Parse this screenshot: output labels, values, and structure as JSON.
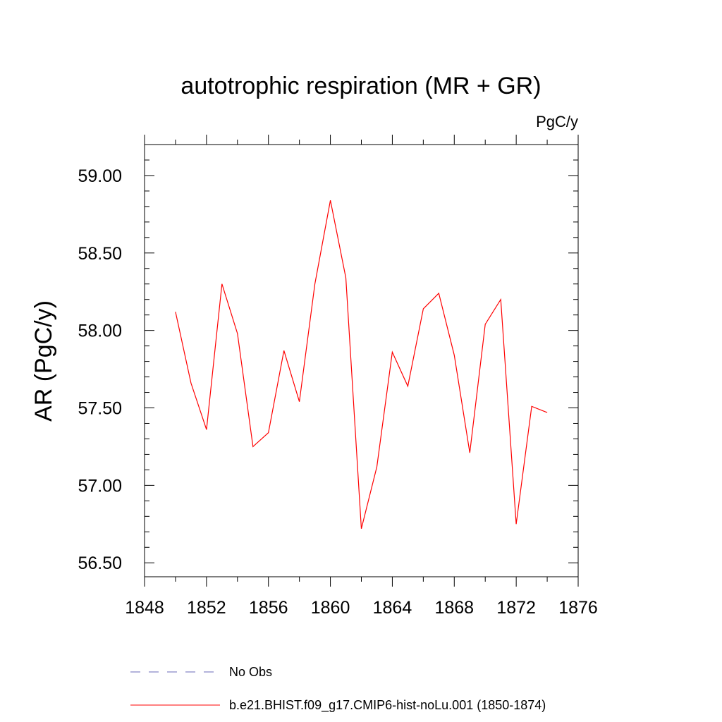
{
  "chart_data": {
    "type": "line",
    "title": "autotrophic respiration (MR + GR)",
    "units": "PgC/y",
    "ylabel": "AR  (PgC/y)",
    "xlabel": "",
    "xlim": [
      1848,
      1876
    ],
    "ylim": [
      56.41,
      59.2
    ],
    "x_ticks": [
      1848,
      1852,
      1856,
      1860,
      1864,
      1868,
      1872,
      1876
    ],
    "x_tick_labels": [
      "1848",
      "1852",
      "1856",
      "1860",
      "1864",
      "1868",
      "1872",
      "1876"
    ],
    "y_ticks": [
      56.5,
      57.0,
      57.5,
      58.0,
      58.5,
      59.0
    ],
    "y_tick_labels": [
      "56.50",
      "57.00",
      "57.50",
      "58.00",
      "58.50",
      "59.00"
    ],
    "grid": false,
    "legend_position": "bottom",
    "series": [
      {
        "name": "No Obs",
        "color": "#6a6ab8",
        "style": "dashed",
        "x": [],
        "y": []
      },
      {
        "name": "b.e21.BHIST.f09_g17.CMIP6-hist-noLu.001 (1850-1874)",
        "color": "#ff0000",
        "style": "solid",
        "x": [
          1850,
          1851,
          1852,
          1853,
          1854,
          1855,
          1856,
          1857,
          1858,
          1859,
          1860,
          1861,
          1862,
          1863,
          1864,
          1865,
          1866,
          1867,
          1868,
          1869,
          1870,
          1871,
          1872,
          1873,
          1874
        ],
        "y": [
          58.12,
          57.66,
          57.36,
          58.3,
          57.98,
          57.25,
          57.34,
          57.87,
          57.54,
          58.3,
          58.84,
          58.34,
          56.72,
          57.12,
          57.86,
          57.64,
          58.14,
          58.24,
          57.84,
          57.21,
          58.04,
          58.2,
          56.75,
          57.51,
          57.47
        ]
      }
    ]
  }
}
